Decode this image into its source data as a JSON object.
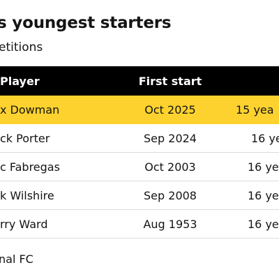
{
  "title": "s youngest starters",
  "subtitle": "etitions",
  "table": {
    "headers": {
      "player": "Player",
      "first_start": "First start",
      "age": ""
    },
    "rows": [
      {
        "player": "x Dowman",
        "first_start": "Oct 2025",
        "age": "15 yea",
        "highlight": true
      },
      {
        "player": "ck Porter",
        "first_start": "Sep 2024",
        "age": "16 ye",
        "highlight": false
      },
      {
        "player": "c Fabregas",
        "first_start": "Oct 2003",
        "age": "16 yea",
        "highlight": false
      },
      {
        "player": "k Wilshire",
        "first_start": "Sep 2008",
        "age": "16 yea",
        "highlight": false
      },
      {
        "player": "rry Ward",
        "first_start": "Aug 1953",
        "age": "16 yea",
        "highlight": false
      }
    ]
  },
  "source": "nal FC",
  "colors": {
    "header_bg": "#000000",
    "highlight": "#fdd22f",
    "divider": "#dcdcdc"
  }
}
